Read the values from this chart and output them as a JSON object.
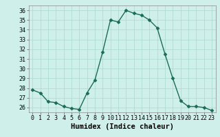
{
  "hours": [
    0,
    1,
    2,
    3,
    4,
    5,
    6,
    7,
    8,
    9,
    10,
    11,
    12,
    13,
    14,
    15,
    16,
    17,
    18,
    19,
    20,
    21,
    22,
    23
  ],
  "values": [
    27.8,
    27.5,
    26.6,
    26.5,
    26.1,
    25.9,
    25.8,
    27.5,
    28.8,
    31.7,
    35.0,
    34.8,
    36.0,
    35.7,
    35.5,
    35.0,
    34.2,
    31.5,
    29.0,
    26.7,
    26.1,
    26.1,
    26.0,
    25.7
  ],
  "line_color": "#1a6b5a",
  "marker": "D",
  "marker_size": 2.5,
  "bg_color": "#cff0ea",
  "grid_color": "#a8d8d0",
  "xlabel": "Humidex (Indice chaleur)",
  "ylim": [
    25.5,
    36.5
  ],
  "yticks": [
    26,
    27,
    28,
    29,
    30,
    31,
    32,
    33,
    34,
    35,
    36
  ],
  "xlim": [
    -0.5,
    23.5
  ],
  "xticks": [
    0,
    1,
    2,
    3,
    4,
    5,
    6,
    7,
    8,
    9,
    10,
    11,
    12,
    13,
    14,
    15,
    16,
    17,
    18,
    19,
    20,
    21,
    22,
    23
  ],
  "tick_fontsize": 6,
  "xlabel_fontsize": 7.5,
  "linewidth": 1.0
}
